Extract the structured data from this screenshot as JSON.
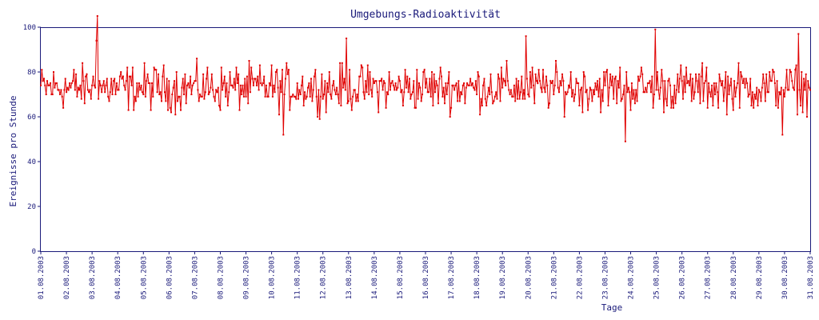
{
  "chart_data": {
    "type": "line",
    "title": "Umgebungs-Radioaktivität",
    "xlabel": "Tage",
    "ylabel": "Ereignisse pro Stunde",
    "ylim": [
      0,
      100
    ],
    "yticks": [
      0,
      20,
      40,
      60,
      80,
      100
    ],
    "ytick_labels": [
      "0",
      "20",
      "40",
      "60",
      "80",
      "100"
    ],
    "xticks": [
      "01.08.2003",
      "02.08.2003",
      "03.08.2003",
      "04.08.2003",
      "05.08.2003",
      "06.08.2003",
      "07.08.2003",
      "08.08.2003",
      "09.08.2003",
      "10.08.2003",
      "11.08.2003",
      "12.08.2003",
      "13.08.2003",
      "14.08.2003",
      "15.08.2003",
      "16.08.2003",
      "17.08.2003",
      "18.08.2003",
      "19.08.2003",
      "20.08.2003",
      "21.08.2003",
      "22.08.2003",
      "23.08.2003",
      "24.08.2003",
      "25.08.2003",
      "26.08.2003",
      "27.08.2003",
      "28.08.2003",
      "29.08.2003",
      "30.08.2003",
      "31.08.2003"
    ],
    "xlim": [
      "01.08.2003",
      "31.08.2003"
    ],
    "sampling": "hourly",
    "grid": false,
    "legend": "none",
    "series": [
      {
        "color": "#e00000",
        "mean": 73,
        "noise_range": [
          58,
          88
        ],
        "notable_points": [
          {
            "day": 2.2,
            "value": 107
          },
          {
            "day": 2.15,
            "value": 94
          },
          {
            "day": 9.45,
            "value": 52
          },
          {
            "day": 11.9,
            "value": 95
          },
          {
            "day": 18.9,
            "value": 96
          },
          {
            "day": 22.8,
            "value": 49
          },
          {
            "day": 23.95,
            "value": 99
          },
          {
            "day": 28.9,
            "value": 52
          },
          {
            "day": 29.55,
            "value": 97
          }
        ]
      }
    ]
  }
}
